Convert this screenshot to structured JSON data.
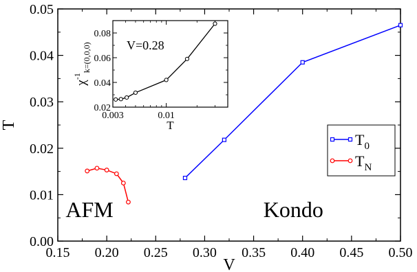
{
  "chart_data": [
    {
      "type": "line",
      "xlabel": "V",
      "ylabel": "T",
      "xlim": [
        0.15,
        0.5
      ],
      "ylim": [
        0,
        0.05
      ],
      "xticks": [
        0.15,
        0.2,
        0.25,
        0.3,
        0.35,
        0.4,
        0.45,
        0.5
      ],
      "xtick_labels": [
        "0.15",
        "0.20",
        "0.25",
        "0.30",
        "0.35",
        "0.40",
        "0.45",
        "0.50"
      ],
      "yticks": [
        0,
        0.01,
        0.02,
        0.03,
        0.04,
        0.05
      ],
      "ytick_labels": [
        "0.00",
        "0.01",
        "0.02",
        "0.03",
        "0.04",
        "0.05"
      ],
      "grid": false,
      "legend_position": "right-middle",
      "series": [
        {
          "name": "T_0",
          "label_main": "T",
          "label_sub": "0",
          "color": "#0000ff",
          "marker": "square",
          "x": [
            0.28,
            0.32,
            0.4,
            0.5
          ],
          "y": [
            0.0136,
            0.0218,
            0.0385,
            0.0465
          ]
        },
        {
          "name": "T_N",
          "label_main": "T",
          "label_sub": "N",
          "color": "#ff0000",
          "marker": "circle",
          "x": [
            0.18,
            0.19,
            0.2,
            0.21,
            0.217,
            0.222
          ],
          "y": [
            0.0151,
            0.0157,
            0.0153,
            0.0145,
            0.0125,
            0.0084
          ]
        }
      ],
      "annotations": [
        {
          "text": "AFM",
          "color": "#ff0000",
          "x": 0.158,
          "y": 0.0052
        },
        {
          "text": "Kondo",
          "color": "#0000ff",
          "x": 0.36,
          "y": 0.0052
        }
      ]
    },
    {
      "type": "line",
      "inset": true,
      "xlabel": "T",
      "ylabel_main": "χ",
      "ylabel_sup": "-1",
      "ylabel_sub": "k=(0,0,0)",
      "xscale": "log",
      "xlim": [
        0.003,
        0.04
      ],
      "ylim": [
        0.02,
        0.09
      ],
      "xticks": [
        0.003,
        0.01
      ],
      "xtick_labels": [
        "0.003",
        "0.01"
      ],
      "yticks": [
        0.02,
        0.04,
        0.06,
        0.08
      ],
      "ytick_labels": [
        "0.02",
        "0.04",
        "0.06",
        "0.08"
      ],
      "annotation": "V=0.28",
      "series": [
        {
          "color": "#000000",
          "marker": "circle",
          "x": [
            0.0032,
            0.0036,
            0.0041,
            0.005,
            0.01,
            0.016,
            0.03
          ],
          "y": [
            0.0262,
            0.0265,
            0.0278,
            0.0317,
            0.042,
            0.059,
            0.0875
          ]
        }
      ]
    }
  ]
}
